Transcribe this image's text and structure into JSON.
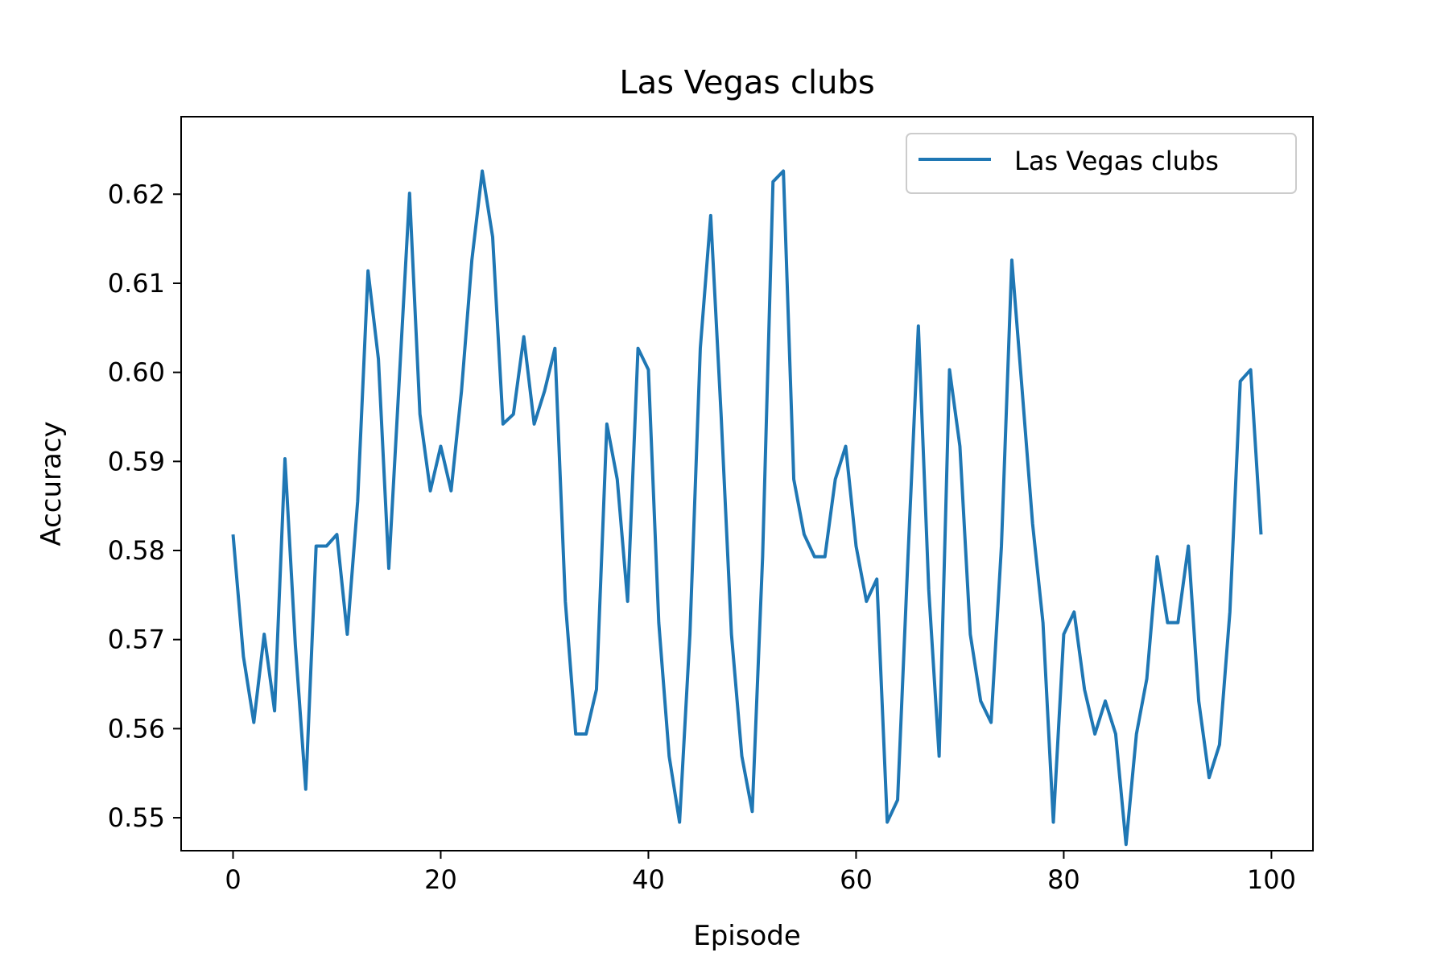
{
  "chart_data": {
    "type": "line",
    "title": "Las Vegas clubs",
    "xlabel": "Episode",
    "ylabel": "Accuracy",
    "xlim": [
      -5,
      104
    ],
    "ylim": [
      0.5463,
      0.6287
    ],
    "xticks": [
      0,
      20,
      40,
      60,
      80,
      100
    ],
    "yticks": [
      0.55,
      0.56,
      0.57,
      0.58,
      0.59,
      0.6,
      0.61,
      0.62
    ],
    "xtick_labels": [
      "0",
      "20",
      "40",
      "60",
      "80",
      "100"
    ],
    "ytick_labels": [
      "0.55",
      "0.56",
      "0.57",
      "0.58",
      "0.59",
      "0.60",
      "0.61",
      "0.62"
    ],
    "grid": false,
    "legend_position": "top-right",
    "series": [
      {
        "name": "Las Vegas clubs",
        "color": "#1f77b4",
        "x": [
          0,
          1,
          2,
          3,
          4,
          5,
          6,
          7,
          8,
          9,
          10,
          11,
          12,
          13,
          14,
          15,
          16,
          17,
          18,
          19,
          20,
          21,
          22,
          23,
          24,
          25,
          26,
          27,
          28,
          29,
          30,
          31,
          32,
          33,
          34,
          35,
          36,
          37,
          38,
          39,
          40,
          41,
          42,
          43,
          44,
          45,
          46,
          47,
          48,
          49,
          50,
          51,
          52,
          53,
          54,
          55,
          56,
          57,
          58,
          59,
          60,
          61,
          62,
          63,
          64,
          65,
          66,
          67,
          68,
          69,
          70,
          71,
          72,
          73,
          74,
          75,
          76,
          77,
          78,
          79,
          80,
          81,
          82,
          83,
          84,
          85,
          86,
          87,
          88,
          89,
          90,
          91,
          92,
          93,
          94,
          95,
          96,
          97,
          98,
          99
        ],
        "values": [
          0.5818,
          0.5681,
          0.5607,
          0.5706,
          0.562,
          0.5903,
          0.5694,
          0.5532,
          0.5805,
          0.5805,
          0.5818,
          0.5706,
          0.5855,
          0.6114,
          0.6015,
          0.578,
          0.599,
          0.6201,
          0.5953,
          0.5867,
          0.5917,
          0.5867,
          0.5979,
          0.6126,
          0.6226,
          0.6152,
          0.5942,
          0.5953,
          0.604,
          0.5942,
          0.5979,
          0.6027,
          0.5743,
          0.5594,
          0.5594,
          0.5644,
          0.5942,
          0.588,
          0.5743,
          0.6027,
          0.6003,
          0.5719,
          0.5569,
          0.5495,
          0.5706,
          0.6027,
          0.6176,
          0.5953,
          0.5706,
          0.5569,
          0.5507,
          0.5793,
          0.6214,
          0.6226,
          0.588,
          0.5818,
          0.5793,
          0.5793,
          0.588,
          0.5917,
          0.5805,
          0.5743,
          0.5768,
          0.5495,
          0.552,
          0.5793,
          0.6052,
          0.5756,
          0.5569,
          0.6003,
          0.5917,
          0.5706,
          0.5631,
          0.5607,
          0.5805,
          0.6126,
          0.5979,
          0.583,
          0.5719,
          0.5495,
          0.5706,
          0.5731,
          0.5644,
          0.5594,
          0.5631,
          0.5594,
          0.547,
          0.5594,
          0.5656,
          0.5793,
          0.5719,
          0.5719,
          0.5805,
          0.5631,
          0.5545,
          0.5582,
          0.5731,
          0.599,
          0.6003,
          0.5818
        ]
      }
    ]
  }
}
